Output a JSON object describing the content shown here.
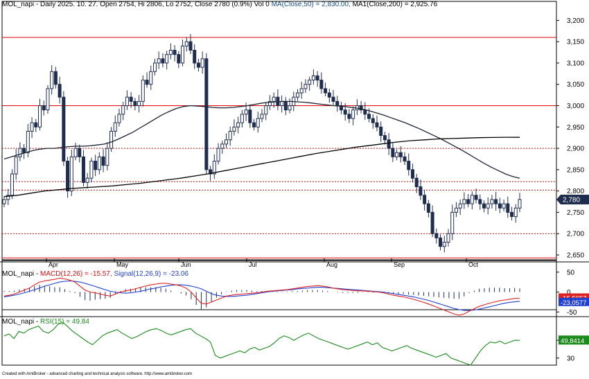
{
  "header": {
    "main": {
      "prefix": "MOL_napi - Daily 2025. 10. 27. Open 2754, Hi 2806, Lo 2752, Close 2780 (0.9%) Vol 0 ",
      "ma50": "MA(Close,50) = 2,830.00,",
      "ma200": " MA1(Close,200) = 2,925.76"
    },
    "macd": {
      "prefix": "MOL_napi - ",
      "macd": "MACD(12,26) = -15.57,",
      "signal": " Signal(12,26,9) = -23.06"
    },
    "rsi": {
      "prefix": "MOL_napi - ",
      "rsi": "RSI(15) = 49.84"
    }
  },
  "credit": "Created with AmiBroker - advanced charting and technical analysis software. http://www.amibroker.com",
  "colors": {
    "up_candle": "#ffffff",
    "down_candle": "#1f2d4f",
    "ma50": "#1a2233",
    "ma200": "#000000",
    "resistance": "#e00000",
    "macd": "#e02020",
    "signal": "#2040d0",
    "rsi": "#1a8a1a"
  },
  "chart_data": [
    {
      "type": "candlestick",
      "symbol": "MOL_napi",
      "period": "Daily",
      "x_tick_labels": [
        "Apr",
        "May",
        "Jun",
        "Jul",
        "Aug",
        "Sep",
        "Oct"
      ],
      "y_tick_labels": [
        "3,200",
        "3,150",
        "3,100",
        "3,050",
        "3,000",
        "2,950",
        "2,900",
        "2,850",
        "2,800",
        "2,750",
        "2,700",
        "2,650"
      ],
      "ylim": [
        2637,
        3225
      ],
      "last_close": 2780,
      "last_close_label": "2,780",
      "horizontal_lines": [
        {
          "value": 3160,
          "style": "solid"
        },
        {
          "value": 3000,
          "style": "solid"
        },
        {
          "value": 2900,
          "style": "dotted"
        },
        {
          "value": 2822,
          "style": "dotted"
        },
        {
          "value": 2802,
          "style": "dotted"
        },
        {
          "value": 2700,
          "style": "dotted"
        },
        {
          "value": 2643,
          "style": "solid"
        }
      ],
      "closes": [
        2780,
        2790,
        2840,
        2880,
        2900,
        2890,
        2940,
        2960,
        2950,
        3000,
        2990,
        3040,
        3080,
        3050,
        3020,
        2870,
        2800,
        2880,
        2900,
        2880,
        2820,
        2830,
        2870,
        2850,
        2880,
        2860,
        2900,
        2940,
        2960,
        2980,
        3000,
        3020,
        3010,
        3000,
        3010,
        3060,
        3050,
        3080,
        3100,
        3110,
        3100,
        3120,
        3130,
        3120,
        3100,
        3140,
        3150,
        3130,
        3100,
        3090,
        3110,
        2850,
        2840,
        2870,
        2900,
        2910,
        2920,
        2940,
        2950,
        2960,
        2980,
        2990,
        2960,
        2950,
        2970,
        2980,
        3000,
        3010,
        3020,
        3000,
        3010,
        2990,
        3000,
        3020,
        3030,
        3040,
        3050,
        3060,
        3070,
        3060,
        3040,
        3030,
        3020,
        3010,
        3000,
        2990,
        2980,
        2970,
        2990,
        3000,
        2990,
        2980,
        2970,
        2960,
        2950,
        2930,
        2920,
        2900,
        2880,
        2890,
        2880,
        2870,
        2850,
        2830,
        2810,
        2790,
        2770,
        2750,
        2700,
        2690,
        2670,
        2680,
        2700,
        2750,
        2760,
        2770,
        2780,
        2770,
        2790,
        2780,
        2770,
        2760,
        2770,
        2780,
        2770,
        2760,
        2770,
        2750,
        2740,
        2760,
        2780
      ],
      "ma50": [
        2875,
        2880,
        2885,
        2890,
        2895,
        2898,
        2900,
        2900,
        2902,
        2904,
        2905,
        2905,
        2906,
        2908,
        2910,
        2915,
        2922,
        2930,
        2938,
        2948,
        2958,
        2968,
        2978,
        2986,
        2993,
        2998,
        3000,
        2999,
        2998,
        2996,
        2995,
        2995,
        2996,
        2998,
        3000,
        3003,
        3006,
        3008,
        3009,
        3010,
        3010,
        3009,
        3008,
        3006,
        3004,
        3002,
        3000,
        2999,
        2997,
        2995,
        2992,
        2988,
        2983,
        2978,
        2972,
        2966,
        2960,
        2953,
        2946,
        2938,
        2930,
        2922,
        2913,
        2904,
        2895,
        2885,
        2875,
        2865,
        2856,
        2848,
        2840,
        2834,
        2830
      ],
      "ma200": [
        2787,
        2790,
        2795,
        2800,
        2803,
        2806,
        2808,
        2810,
        2812,
        2815,
        2818,
        2822,
        2826,
        2830,
        2835,
        2840,
        2846,
        2852,
        2858,
        2864,
        2870,
        2876,
        2882,
        2888,
        2893,
        2898,
        2903,
        2907,
        2911,
        2915,
        2918,
        2920,
        2922,
        2923,
        2924,
        2925,
        2925.5,
        2926,
        2925.76
      ]
    },
    {
      "type": "macd",
      "series": [
        {
          "name": "MACD(12,26)",
          "last": -15.57,
          "last_label": "-15,5657"
        },
        {
          "name": "Signal(12,26,9)",
          "last": -23.06,
          "last_label": "-23,0577"
        }
      ],
      "y_tick_labels": [
        "50",
        "0",
        "-50"
      ],
      "ylim": [
        -60,
        60
      ],
      "macd": [
        -10,
        -8,
        -5,
        0,
        5,
        10,
        18,
        25,
        28,
        30,
        32,
        35,
        33,
        30,
        25,
        15,
        5,
        0,
        -2,
        -5,
        -8,
        -10,
        -5,
        0,
        3,
        5,
        8,
        12,
        15,
        18,
        20,
        22,
        22,
        20,
        18,
        15,
        10,
        0,
        -15,
        -28,
        -30,
        -25,
        -20,
        -15,
        -10,
        -8,
        -6,
        -5,
        -4,
        -3,
        -2,
        0,
        2,
        3,
        4,
        5,
        6,
        8,
        10,
        12,
        14,
        15,
        16,
        15,
        13,
        10,
        8,
        6,
        5,
        4,
        3,
        3,
        2,
        1,
        0,
        -2,
        -5,
        -8,
        -10,
        -12,
        -15,
        -18,
        -22,
        -26,
        -30,
        -35,
        -40,
        -45,
        -50,
        -55,
        -58,
        -55,
        -48,
        -42,
        -36,
        -32,
        -28,
        -25,
        -22,
        -20,
        -18,
        -16,
        -15.57
      ],
      "signal": [
        -12,
        -10,
        -8,
        -5,
        -2,
        2,
        6,
        10,
        15,
        18,
        22,
        25,
        27,
        28,
        27,
        25,
        22,
        18,
        14,
        10,
        6,
        2,
        0,
        -2,
        -3,
        -2,
        0,
        2,
        5,
        8,
        10,
        13,
        15,
        17,
        18,
        18,
        17,
        15,
        12,
        8,
        2,
        -4,
        -8,
        -10,
        -11,
        -11,
        -10,
        -9,
        -8,
        -6,
        -4,
        -2,
        0,
        2,
        3,
        4,
        5,
        6,
        8,
        9,
        10,
        11,
        12,
        12,
        11,
        10,
        9,
        8,
        7,
        6,
        5,
        4,
        3,
        2,
        1,
        0,
        -2,
        -4,
        -6,
        -8,
        -10,
        -12,
        -15,
        -18,
        -21,
        -25,
        -29,
        -33,
        -37,
        -41,
        -44,
        -46,
        -46,
        -45,
        -43,
        -40,
        -37,
        -34,
        -31,
        -28,
        -26,
        -24.5,
        -23.06
      ]
    },
    {
      "type": "line",
      "series": [
        {
          "name": "RSI(15)",
          "last": 49.84,
          "last_label": "49,8414"
        }
      ],
      "y_tick_labels": [
        "50",
        "30"
      ],
      "ylim": [
        15,
        75
      ],
      "rsi": [
        55,
        57,
        52,
        60,
        58,
        62,
        64,
        66,
        60,
        58,
        62,
        68,
        70,
        65,
        60,
        56,
        52,
        48,
        45,
        50,
        55,
        58,
        60,
        62,
        58,
        55,
        52,
        54,
        57,
        60,
        62,
        63,
        61,
        58,
        56,
        58,
        60,
        62,
        63,
        58,
        55,
        52,
        48,
        33,
        30,
        32,
        34,
        36,
        38,
        36,
        40,
        42,
        39,
        41,
        43,
        47,
        52,
        55,
        53,
        50,
        53,
        56,
        58,
        55,
        52,
        50,
        48,
        46,
        44,
        42,
        40,
        42,
        44,
        46,
        48,
        45,
        47,
        42,
        40,
        38,
        40,
        42,
        44,
        41,
        39,
        37,
        35,
        33,
        31,
        33,
        35,
        30,
        28,
        26,
        24,
        22,
        30,
        38,
        44,
        48,
        47,
        49,
        46,
        48,
        50,
        49.84
      ]
    }
  ]
}
